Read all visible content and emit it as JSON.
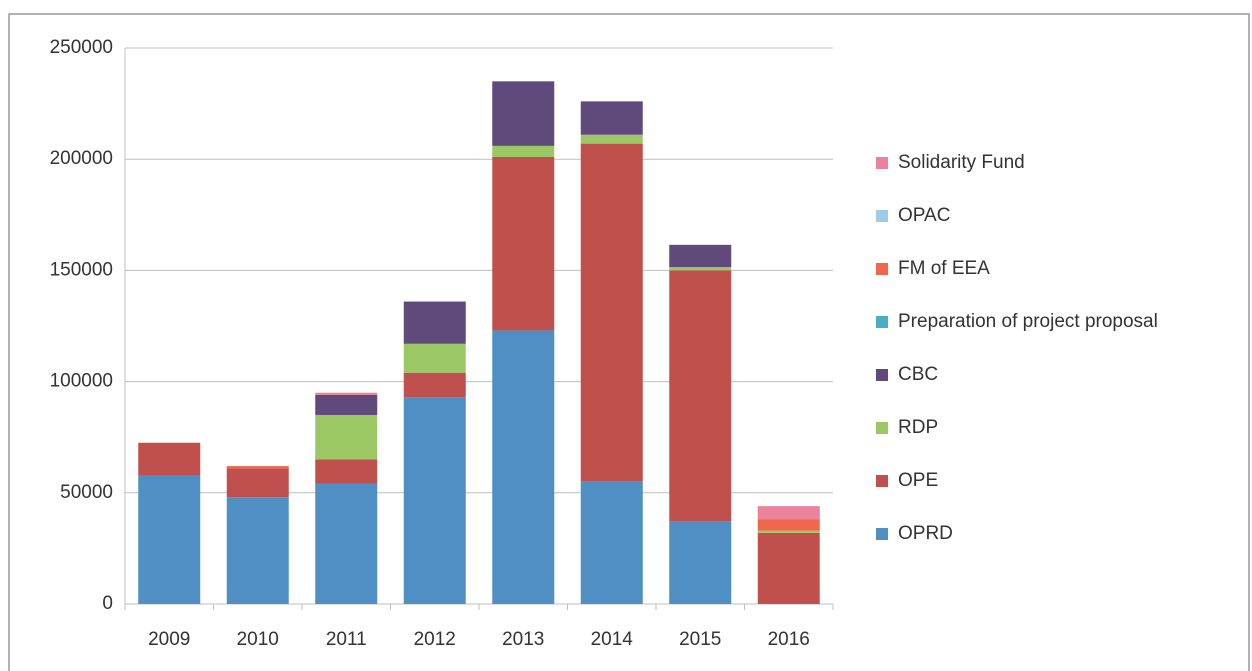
{
  "chart_data": {
    "type": "stacked_bar",
    "categories": [
      "2009",
      "2010",
      "2011",
      "2012",
      "2013",
      "2014",
      "2015",
      "2016"
    ],
    "series": [
      {
        "name": "OPRD",
        "color": "#4f8fc4",
        "values": [
          58000,
          48000,
          54000,
          93000,
          123000,
          55000,
          37000,
          0
        ]
      },
      {
        "name": "OPE",
        "color": "#c0504d",
        "values": [
          14500,
          13000,
          11000,
          11000,
          78000,
          152000,
          113000,
          32000
        ]
      },
      {
        "name": "RDP",
        "color": "#9bc865",
        "values": [
          0,
          0,
          20000,
          13000,
          5000,
          4000,
          1500,
          1000
        ]
      },
      {
        "name": "CBC",
        "color": "#5f4a7b",
        "values": [
          0,
          0,
          9000,
          19000,
          29000,
          15000,
          10000,
          0
        ]
      },
      {
        "name": "Preparation of project proposal",
        "color": "#4bacc6",
        "values": [
          0,
          0,
          0,
          0,
          0,
          0,
          0,
          0
        ]
      },
      {
        "name": "FM of EEA",
        "color": "#f0664a",
        "values": [
          0,
          1000,
          0,
          0,
          0,
          0,
          0,
          5000
        ]
      },
      {
        "name": "OPAC",
        "color": "#9dcbe8",
        "values": [
          0,
          0,
          0,
          0,
          0,
          0,
          0,
          0
        ]
      },
      {
        "name": "Solidarity Fund",
        "color": "#e9829a",
        "values": [
          0,
          0,
          1000,
          0,
          0,
          0,
          0,
          6000
        ]
      }
    ],
    "ylim": [
      0,
      250000
    ],
    "yticks": [
      0,
      50000,
      100000,
      150000,
      200000,
      250000
    ],
    "grid": true,
    "legend": "right"
  }
}
